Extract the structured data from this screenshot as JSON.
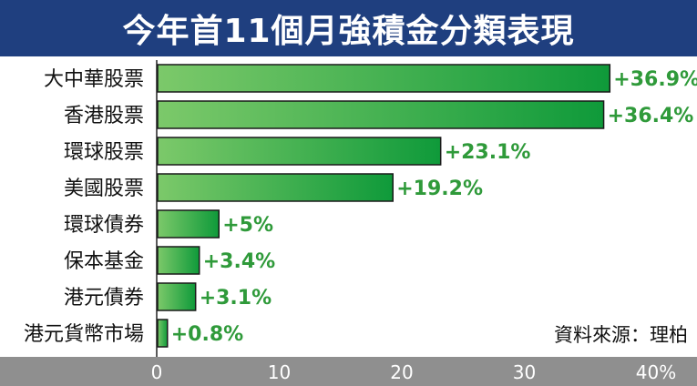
{
  "title": "今年首11個月強積金分類表現",
  "source": "資料來源：理柏",
  "colors": {
    "title_bg": "#1f3f7f",
    "bar_dark": "#0f9a3a",
    "bar_light": "#7cc96a",
    "value_text": "#2f9a3a",
    "axis_bg": "#8f8f8f"
  },
  "chart_data": {
    "type": "bar",
    "orientation": "horizontal",
    "categories": [
      "大中華股票",
      "香港股票",
      "環球股票",
      "美國股票",
      "環球債券",
      "保本基金",
      "港元債券",
      "港元貨幣市場"
    ],
    "values": [
      36.9,
      36.4,
      23.1,
      19.2,
      5,
      3.4,
      3.1,
      0.8
    ],
    "value_labels": [
      "+36.9%",
      "+36.4%",
      "+23.1%",
      "+19.2%",
      "+5%",
      "+3.4%",
      "+3.1%",
      "+0.8%"
    ],
    "xlim": [
      0,
      40
    ],
    "x_ticks": [
      "0",
      "10",
      "20",
      "30",
      "40%"
    ],
    "xlabel": "",
    "ylabel": ""
  }
}
